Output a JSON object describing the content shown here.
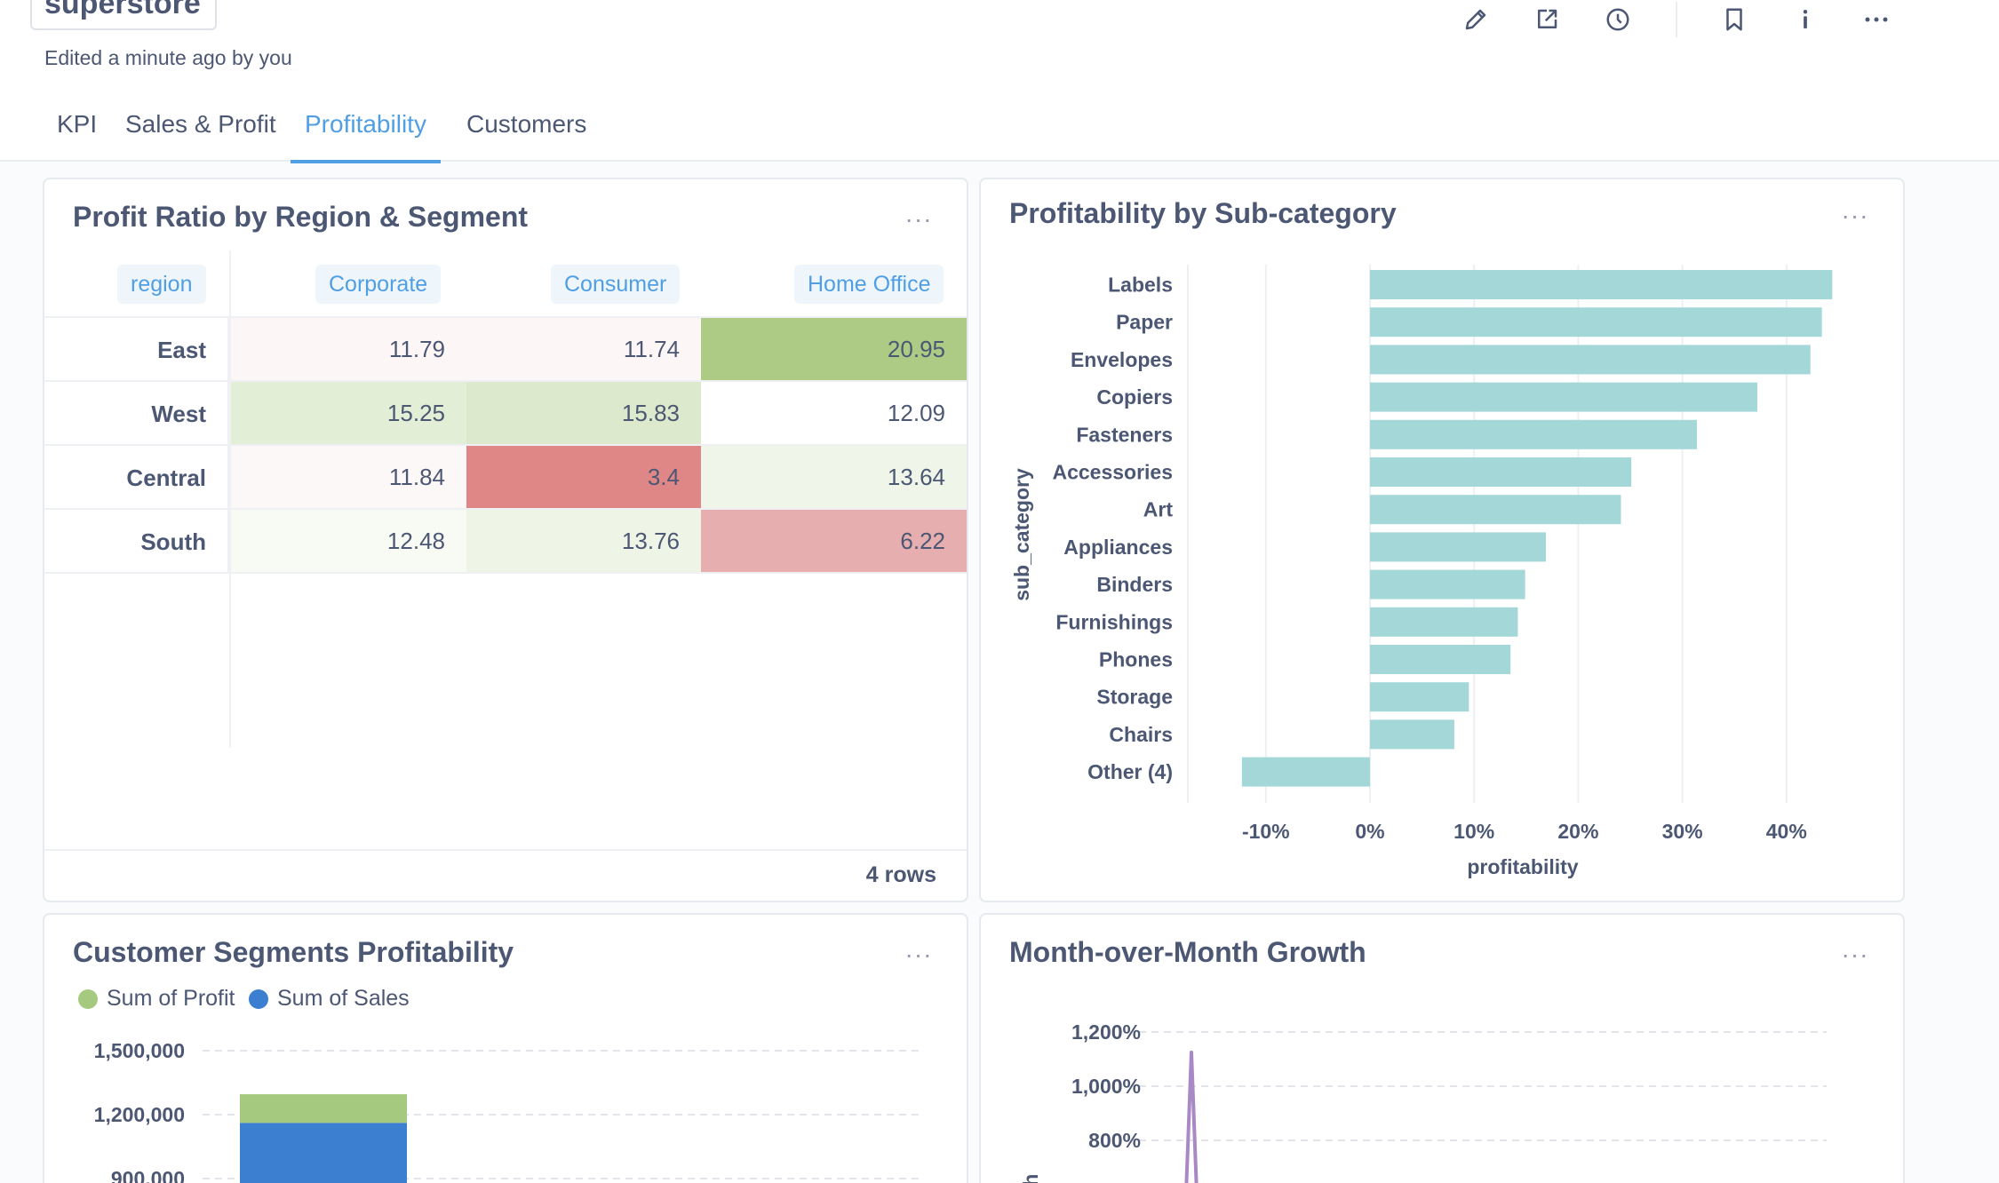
{
  "dashboard": {
    "title": "superstore",
    "subtitle": "Edited a minute ago by you"
  },
  "toolbar": {
    "icons": [
      "pencil-icon",
      "share-icon",
      "clock-icon",
      "bookmark-icon",
      "info-icon",
      "more-icon"
    ]
  },
  "tabs": [
    {
      "label": "KPI",
      "active": false
    },
    {
      "label": "Sales & Profit",
      "active": false
    },
    {
      "label": "Profitability",
      "active": true
    },
    {
      "label": "Customers",
      "active": false
    }
  ],
  "profit_ratio_card": {
    "title": "Profit Ratio by Region & Segment",
    "more_label": "···",
    "header_pills": [
      "region",
      "Corporate",
      "Consumer",
      "Home Office"
    ],
    "footer": "4 rows",
    "rows": [
      {
        "region": "East",
        "cells": [
          "11.79",
          "11.74",
          "20.95"
        ],
        "colors": [
          "#fdf6f6",
          "#fdf6f6",
          "#aecb85"
        ]
      },
      {
        "region": "West",
        "cells": [
          "15.25",
          "15.83",
          "12.09"
        ],
        "colors": [
          "#e3eed6",
          "#dce9cc",
          "#ffffff"
        ]
      },
      {
        "region": "Central",
        "cells": [
          "11.84",
          "3.4",
          "13.64"
        ],
        "colors": [
          "#fdf8f8",
          "#df8787",
          "#eff5e8"
        ]
      },
      {
        "region": "South",
        "cells": [
          "12.48",
          "13.76",
          "6.22"
        ],
        "colors": [
          "#f8fbf4",
          "#eef5e6",
          "#e6aeae"
        ]
      }
    ]
  },
  "subcategory_card": {
    "title": "Profitability by Sub-category",
    "more_label": "···",
    "colors": {
      "bar": "#a4d7d8"
    },
    "chart_data": {
      "type": "bar",
      "orientation": "horizontal",
      "categories": [
        "Labels",
        "Paper",
        "Envelopes",
        "Copiers",
        "Fasteners",
        "Accessories",
        "Art",
        "Appliances",
        "Binders",
        "Furnishings",
        "Phones",
        "Storage",
        "Chairs",
        "Other (4)"
      ],
      "values": [
        44.4,
        43.4,
        42.3,
        37.2,
        31.4,
        25.1,
        24.1,
        16.9,
        14.9,
        14.2,
        13.5,
        9.5,
        8.1,
        -12.3
      ],
      "xlabel": "profitability",
      "ylabel": "sub_category",
      "xlim": [
        -13,
        45
      ],
      "xticks": [
        "-10%",
        "0%",
        "10%",
        "20%",
        "30%",
        "40%"
      ],
      "xtick_values": [
        -10,
        0,
        10,
        20,
        30,
        40
      ],
      "grid": true
    }
  },
  "segments_card": {
    "title": "Customer Segments Profitability",
    "more_label": "···",
    "legend": [
      {
        "label": "Sum of Profit",
        "color": "#a4c97f"
      },
      {
        "label": "Sum of Sales",
        "color": "#3c7ed0"
      }
    ],
    "chart_data": {
      "type": "bar",
      "stacked": true,
      "series": [
        {
          "name": "Sum of Sales",
          "values": [
            1161401
          ]
        },
        {
          "name": "Sum of Profit",
          "values": [
            134119
          ]
        }
      ],
      "yticks": [
        "1,500,000",
        "1,200,000",
        "900,000"
      ],
      "ytick_values": [
        1500000,
        1200000,
        900000
      ],
      "grid": true
    }
  },
  "mom_card": {
    "title": "Month-over-Month Growth",
    "more_label": "···",
    "colors": {
      "line": "#a989c5"
    },
    "chart_data": {
      "type": "line",
      "ylabel": "growth",
      "yticks": [
        "1,200%",
        "1,000%",
        "800%"
      ],
      "ytick_values": [
        1200,
        1000,
        800
      ],
      "peak_value": 1125,
      "grid": true
    }
  }
}
